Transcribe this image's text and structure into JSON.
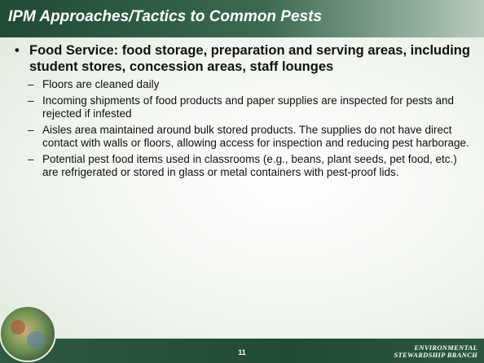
{
  "header": {
    "title": "IPM Approaches/Tactics to Common Pests"
  },
  "content": {
    "bullet": "Food Service: food storage, preparation and serving areas, including student stores, concession areas, staff lounges",
    "sub_bullets": [
      "Floors are cleaned daily",
      "Incoming shipments of food products and paper supplies are inspected for pests and rejected if infested",
      "Aisles area maintained around bulk stored products.  The supplies do not have direct contact with walls or floors, allowing access for inspection and reducing pest harborage.",
      "Potential pest food items used in classrooms (e.g., beans, plant seeds, pet food, etc.) are refrigerated or stored in glass or metal containers with pest-proof lids."
    ]
  },
  "footer": {
    "page_number": "11",
    "logo": [
      "ENVIRONMENTAL",
      "STEWARDSHIP BRANCH"
    ]
  }
}
